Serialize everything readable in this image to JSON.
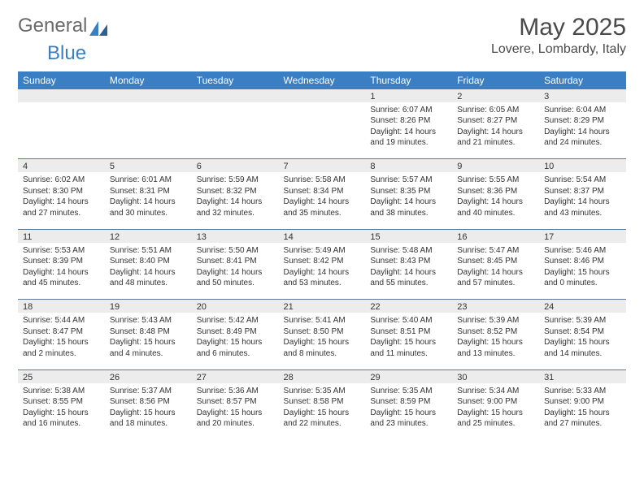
{
  "logo": {
    "text1": "General",
    "text2": "Blue"
  },
  "title": "May 2025",
  "subtitle": "Lovere, Lombardy, Italy",
  "colors": {
    "header_bg": "#3a7fc4",
    "header_text": "#ffffff",
    "daynum_bg": "#ececec",
    "row_border": "#5a7a9a",
    "body_text": "#333333",
    "logo_gray": "#6a6a6a",
    "logo_blue": "#3a7fc4"
  },
  "weekdays": [
    "Sunday",
    "Monday",
    "Tuesday",
    "Wednesday",
    "Thursday",
    "Friday",
    "Saturday"
  ],
  "weeks": [
    [
      null,
      null,
      null,
      null,
      {
        "n": "1",
        "sr": "6:07 AM",
        "ss": "8:26 PM",
        "dl": "14 hours and 19 minutes."
      },
      {
        "n": "2",
        "sr": "6:05 AM",
        "ss": "8:27 PM",
        "dl": "14 hours and 21 minutes."
      },
      {
        "n": "3",
        "sr": "6:04 AM",
        "ss": "8:29 PM",
        "dl": "14 hours and 24 minutes."
      }
    ],
    [
      {
        "n": "4",
        "sr": "6:02 AM",
        "ss": "8:30 PM",
        "dl": "14 hours and 27 minutes."
      },
      {
        "n": "5",
        "sr": "6:01 AM",
        "ss": "8:31 PM",
        "dl": "14 hours and 30 minutes."
      },
      {
        "n": "6",
        "sr": "5:59 AM",
        "ss": "8:32 PM",
        "dl": "14 hours and 32 minutes."
      },
      {
        "n": "7",
        "sr": "5:58 AM",
        "ss": "8:34 PM",
        "dl": "14 hours and 35 minutes."
      },
      {
        "n": "8",
        "sr": "5:57 AM",
        "ss": "8:35 PM",
        "dl": "14 hours and 38 minutes."
      },
      {
        "n": "9",
        "sr": "5:55 AM",
        "ss": "8:36 PM",
        "dl": "14 hours and 40 minutes."
      },
      {
        "n": "10",
        "sr": "5:54 AM",
        "ss": "8:37 PM",
        "dl": "14 hours and 43 minutes."
      }
    ],
    [
      {
        "n": "11",
        "sr": "5:53 AM",
        "ss": "8:39 PM",
        "dl": "14 hours and 45 minutes."
      },
      {
        "n": "12",
        "sr": "5:51 AM",
        "ss": "8:40 PM",
        "dl": "14 hours and 48 minutes."
      },
      {
        "n": "13",
        "sr": "5:50 AM",
        "ss": "8:41 PM",
        "dl": "14 hours and 50 minutes."
      },
      {
        "n": "14",
        "sr": "5:49 AM",
        "ss": "8:42 PM",
        "dl": "14 hours and 53 minutes."
      },
      {
        "n": "15",
        "sr": "5:48 AM",
        "ss": "8:43 PM",
        "dl": "14 hours and 55 minutes."
      },
      {
        "n": "16",
        "sr": "5:47 AM",
        "ss": "8:45 PM",
        "dl": "14 hours and 57 minutes."
      },
      {
        "n": "17",
        "sr": "5:46 AM",
        "ss": "8:46 PM",
        "dl": "15 hours and 0 minutes."
      }
    ],
    [
      {
        "n": "18",
        "sr": "5:44 AM",
        "ss": "8:47 PM",
        "dl": "15 hours and 2 minutes."
      },
      {
        "n": "19",
        "sr": "5:43 AM",
        "ss": "8:48 PM",
        "dl": "15 hours and 4 minutes."
      },
      {
        "n": "20",
        "sr": "5:42 AM",
        "ss": "8:49 PM",
        "dl": "15 hours and 6 minutes."
      },
      {
        "n": "21",
        "sr": "5:41 AM",
        "ss": "8:50 PM",
        "dl": "15 hours and 8 minutes."
      },
      {
        "n": "22",
        "sr": "5:40 AM",
        "ss": "8:51 PM",
        "dl": "15 hours and 11 minutes."
      },
      {
        "n": "23",
        "sr": "5:39 AM",
        "ss": "8:52 PM",
        "dl": "15 hours and 13 minutes."
      },
      {
        "n": "24",
        "sr": "5:39 AM",
        "ss": "8:54 PM",
        "dl": "15 hours and 14 minutes."
      }
    ],
    [
      {
        "n": "25",
        "sr": "5:38 AM",
        "ss": "8:55 PM",
        "dl": "15 hours and 16 minutes."
      },
      {
        "n": "26",
        "sr": "5:37 AM",
        "ss": "8:56 PM",
        "dl": "15 hours and 18 minutes."
      },
      {
        "n": "27",
        "sr": "5:36 AM",
        "ss": "8:57 PM",
        "dl": "15 hours and 20 minutes."
      },
      {
        "n": "28",
        "sr": "5:35 AM",
        "ss": "8:58 PM",
        "dl": "15 hours and 22 minutes."
      },
      {
        "n": "29",
        "sr": "5:35 AM",
        "ss": "8:59 PM",
        "dl": "15 hours and 23 minutes."
      },
      {
        "n": "30",
        "sr": "5:34 AM",
        "ss": "9:00 PM",
        "dl": "15 hours and 25 minutes."
      },
      {
        "n": "31",
        "sr": "5:33 AM",
        "ss": "9:00 PM",
        "dl": "15 hours and 27 minutes."
      }
    ]
  ],
  "labels": {
    "sunrise": "Sunrise: ",
    "sunset": "Sunset: ",
    "daylight": "Daylight: "
  }
}
